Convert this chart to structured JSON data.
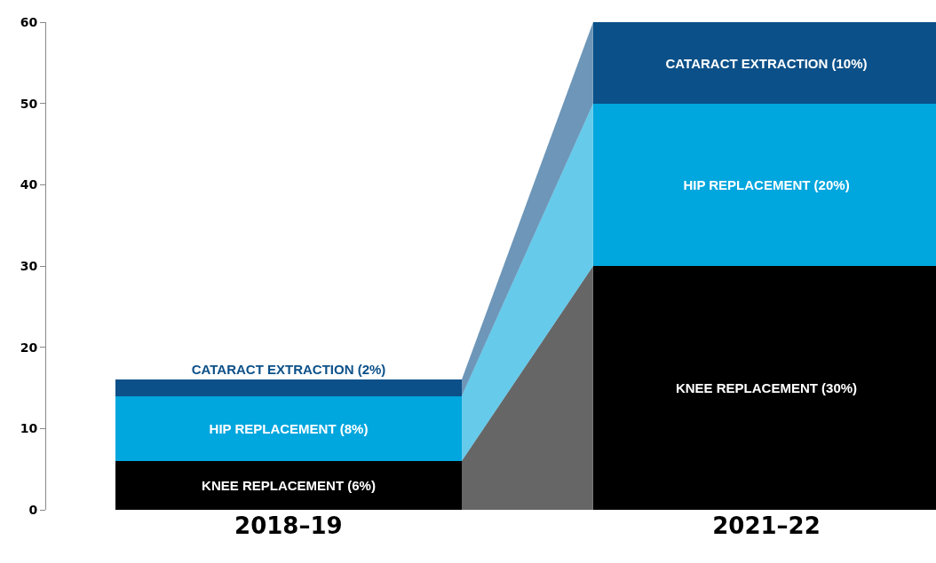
{
  "chart_data": {
    "type": "bar",
    "stacked": true,
    "categories": [
      "2018–19",
      "2021–22"
    ],
    "series": [
      {
        "color": "#000000",
        "values": [
          6,
          30
        ],
        "value_labels": [
          "KNEE REPLACEMENT (6%)",
          "KNEE REPLACEMENT (30%)"
        ]
      },
      {
        "color": "#00a6de",
        "values": [
          8,
          20
        ],
        "value_labels": [
          "HIP REPLACEMENT (8%)",
          "HIP REPLACEMENT (20%)"
        ]
      },
      {
        "color": "#0b5088",
        "values": [
          2,
          10
        ],
        "value_labels": [
          "CATARACT EXTRACTION (2%)",
          "CATARACT EXTRACTION (10%)"
        ]
      }
    ],
    "ylim": [
      0,
      60
    ],
    "yticks": [
      0,
      10,
      20,
      30,
      40,
      50,
      60
    ],
    "grid": false
  }
}
